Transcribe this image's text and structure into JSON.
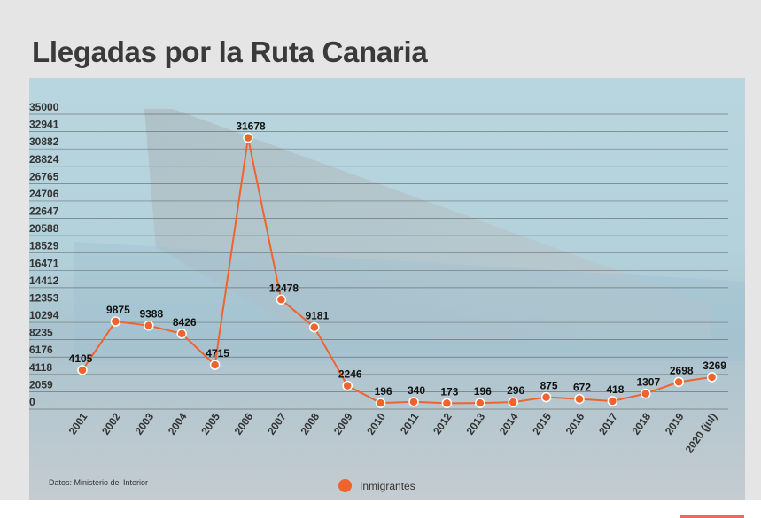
{
  "chart_data": {
    "type": "line",
    "title": "Llegadas por la Ruta Canaria",
    "categories": [
      "2001",
      "2002",
      "2003",
      "2004",
      "2005",
      "2006",
      "2007",
      "2008",
      "2009",
      "2010",
      "2011",
      "2012",
      "2013",
      "2014",
      "2015",
      "2016",
      "2017",
      "2018",
      "2019",
      "2020 (jul)"
    ],
    "series": [
      {
        "name": "Inmigrantes",
        "color": "#f0632c",
        "values": [
          4105,
          9875,
          9388,
          8426,
          4715,
          31678,
          12478,
          9181,
          2246,
          196,
          340,
          173,
          196,
          296,
          875,
          672,
          418,
          1307,
          2698,
          3269
        ]
      }
    ],
    "yticks": [
      0,
      2059,
      4118,
      6176,
      8235,
      10294,
      12353,
      14412,
      16471,
      18529,
      20588,
      22647,
      24706,
      26765,
      28824,
      30882,
      32941,
      35000
    ],
    "ylim": [
      0,
      35000
    ],
    "grid": true,
    "legend_position": "bottom-center",
    "source": "Datos: Ministerio del Interior"
  }
}
